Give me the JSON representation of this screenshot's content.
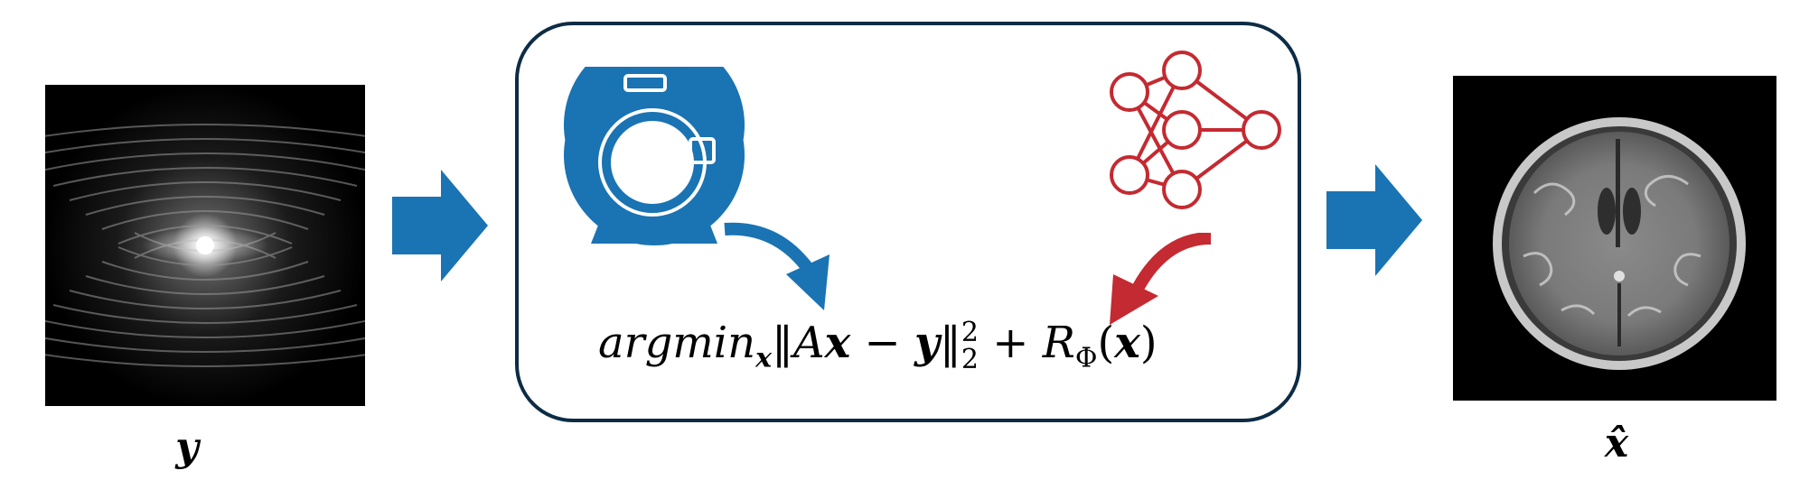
{
  "input": {
    "label": "y",
    "image_desc_icon": "kspace-image"
  },
  "output": {
    "label": "x̂",
    "image_desc_icon": "brain-mri-image"
  },
  "panel": {
    "formula": {
      "argmin": "argmin",
      "argmin_sub": "x",
      "norm_open": "‖",
      "A": "A",
      "x1": "x",
      "minus": " − ",
      "y": "y",
      "norm_close": "‖",
      "sub2": "2",
      "sup2": "2",
      "plus": " + ",
      "R": "R",
      "R_sub": "Φ",
      "paren_open": "(",
      "x2": "x",
      "paren_close": ")"
    },
    "icons": [
      "mri-scanner-icon",
      "neural-network-icon"
    ]
  },
  "colors": {
    "accent_blue": "#1a73b3",
    "accent_red": "#c42a31",
    "panel_border": "#0d2c45"
  }
}
